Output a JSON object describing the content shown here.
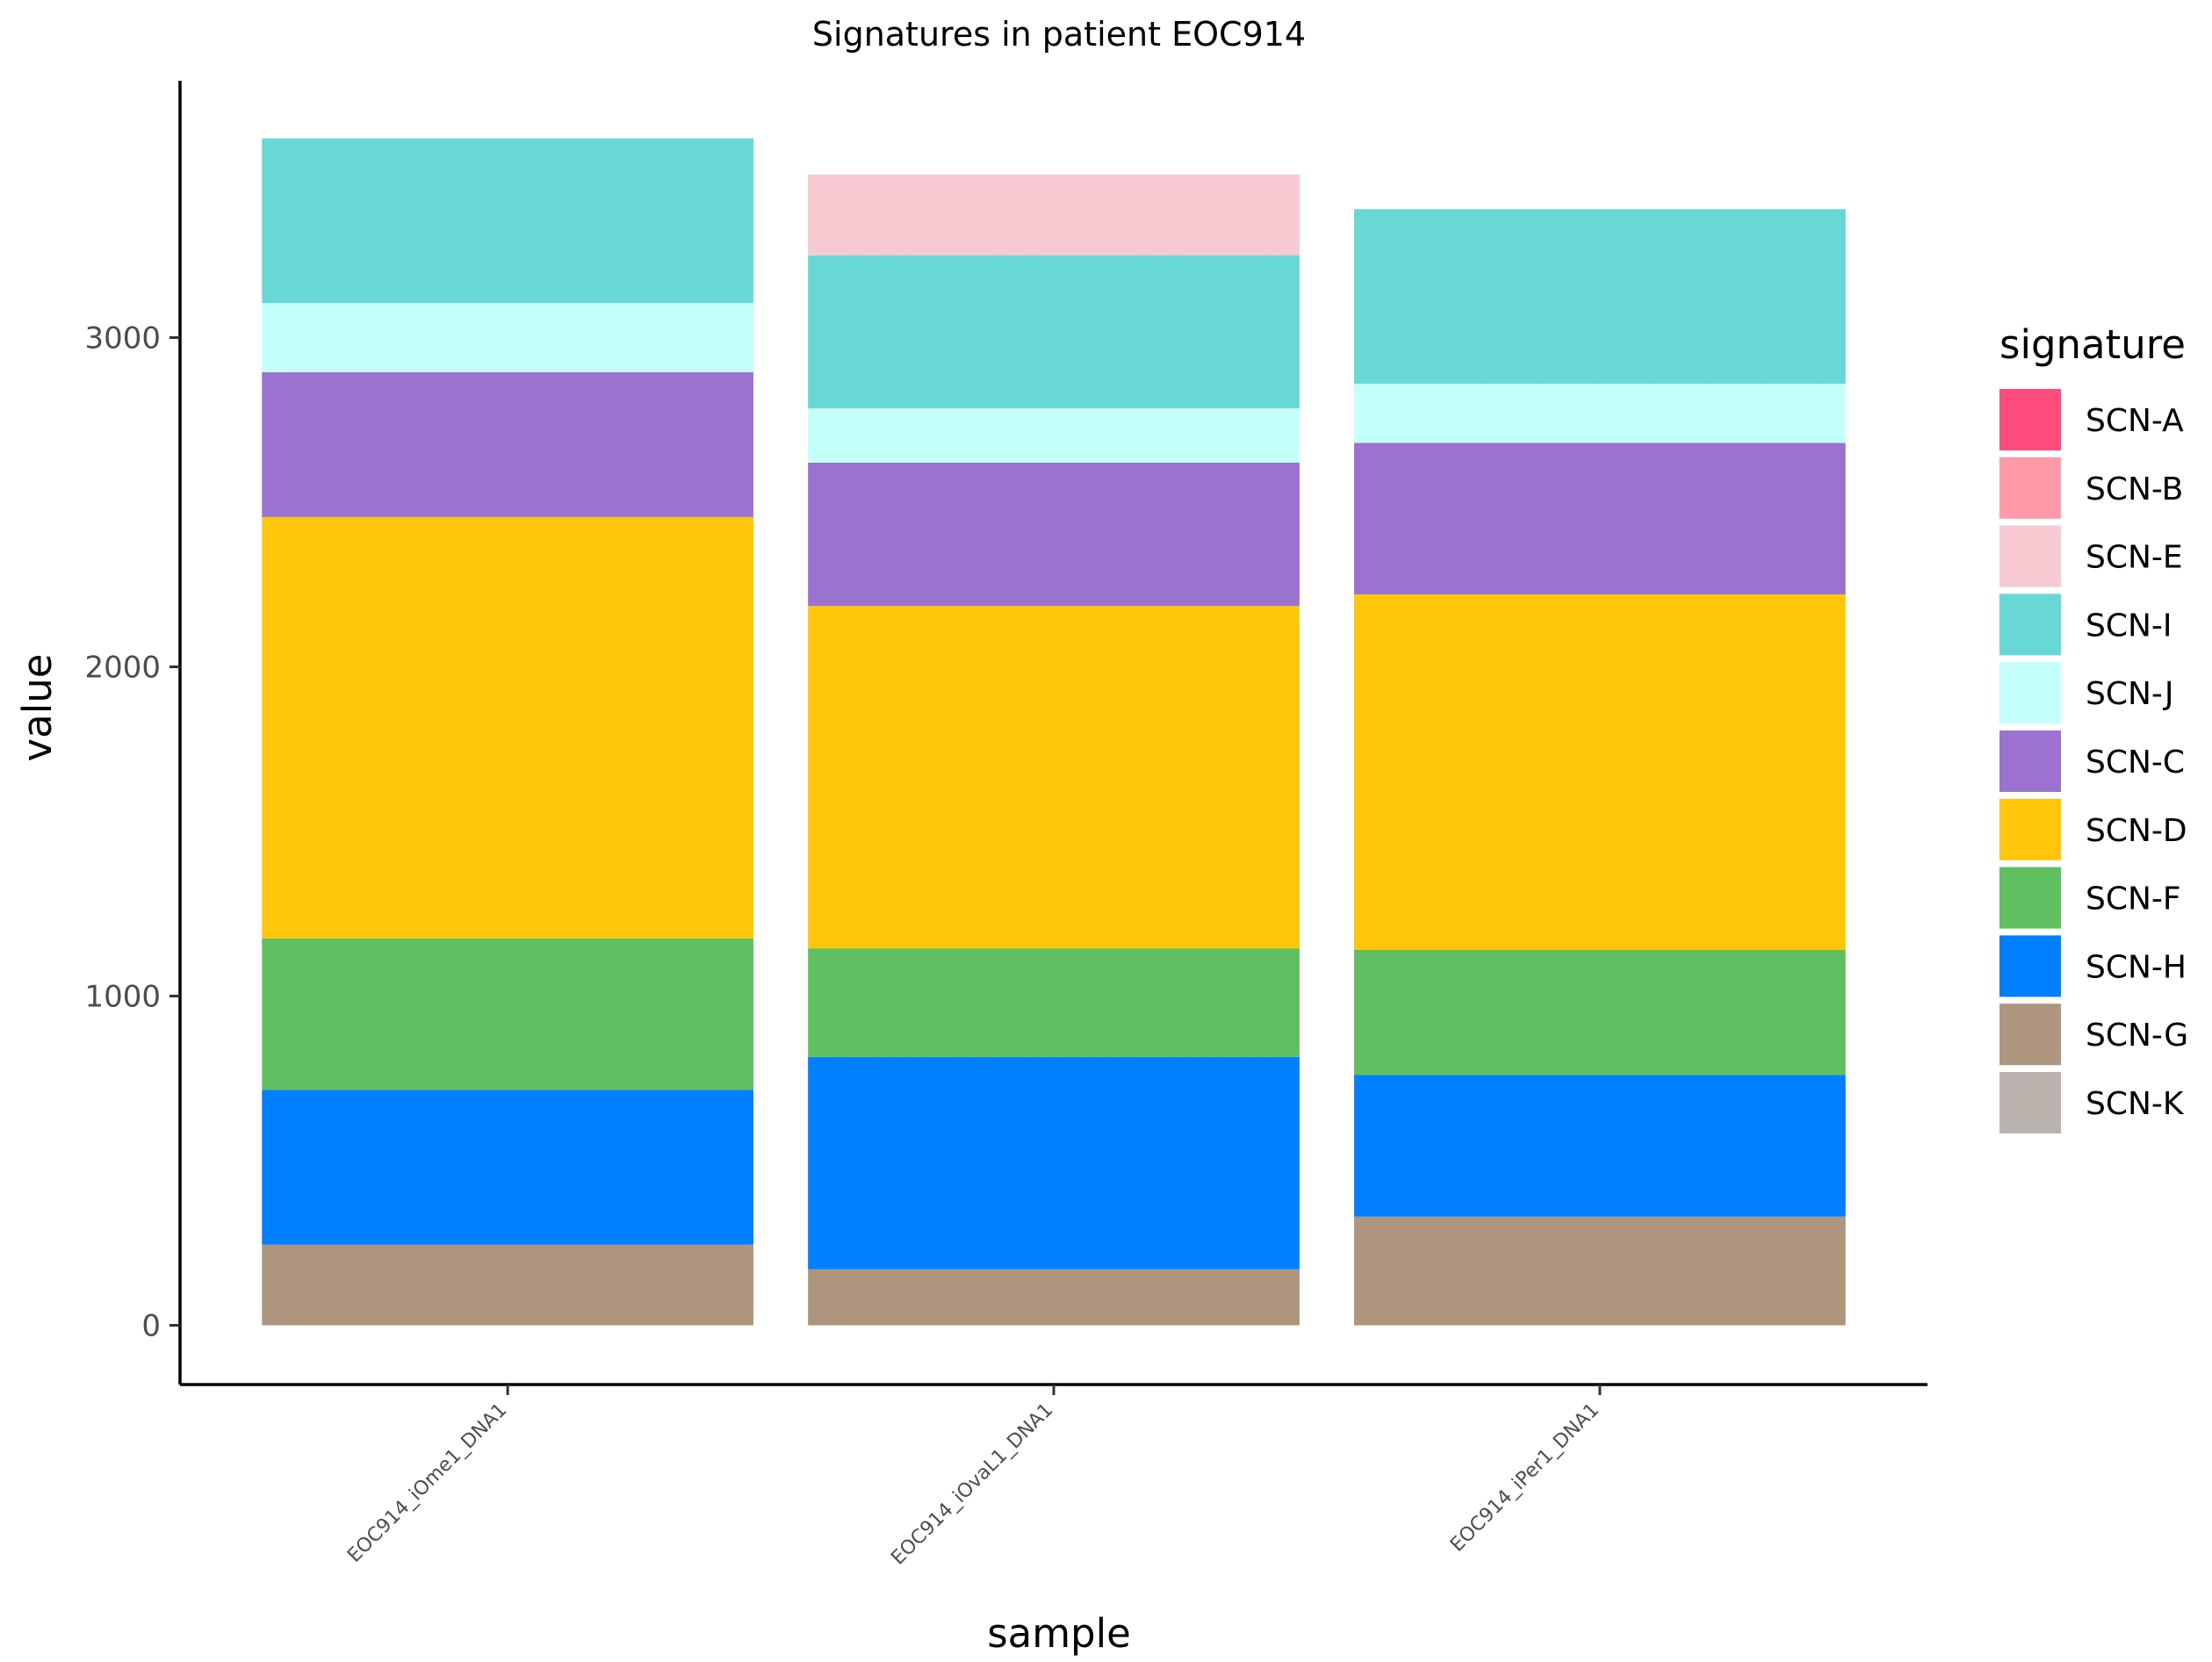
{
  "chart_data": {
    "type": "bar",
    "stacked": true,
    "title": "Signatures in patient EOC914",
    "xlabel": "sample",
    "ylabel": "value",
    "ylim": [
      -180,
      3780
    ],
    "yticks": [
      0,
      1000,
      2000,
      3000
    ],
    "grid": false,
    "legend_position": "right",
    "legend_title": "signature",
    "categories": [
      "EOC914_iOme1_DNA1",
      "EOC914_iOvaL1_DNA1",
      "EOC914_iPer1_DNA1"
    ],
    "series": [
      {
        "name": "SCN-A",
        "color": "#FF4C7D",
        "values": [
          0,
          0,
          0
        ]
      },
      {
        "name": "SCN-B",
        "color": "#FF9AAA",
        "values": [
          0,
          0,
          0
        ]
      },
      {
        "name": "SCN-E",
        "color": "#F7C9D1",
        "values": [
          0,
          245,
          0
        ]
      },
      {
        "name": "SCN-I",
        "color": "#68D8D6",
        "values": [
          500,
          465,
          530
        ]
      },
      {
        "name": "SCN-J",
        "color": "#C4FFF9",
        "values": [
          210,
          165,
          180
        ]
      },
      {
        "name": "SCN-C",
        "color": "#9C72D1",
        "values": [
          440,
          435,
          460
        ]
      },
      {
        "name": "SCN-D",
        "color": "#FFC60A",
        "values": [
          1280,
          1040,
          1080
        ]
      },
      {
        "name": "SCN-F",
        "color": "#60BF60",
        "values": [
          460,
          330,
          380
        ]
      },
      {
        "name": "SCN-H",
        "color": "#007FFF",
        "values": [
          470,
          645,
          430
        ]
      },
      {
        "name": "SCN-G",
        "color": "#AD957E",
        "values": [
          245,
          170,
          330
        ]
      },
      {
        "name": "SCN-K",
        "color": "#BAB3AD",
        "values": [
          0,
          0,
          0
        ]
      }
    ]
  }
}
